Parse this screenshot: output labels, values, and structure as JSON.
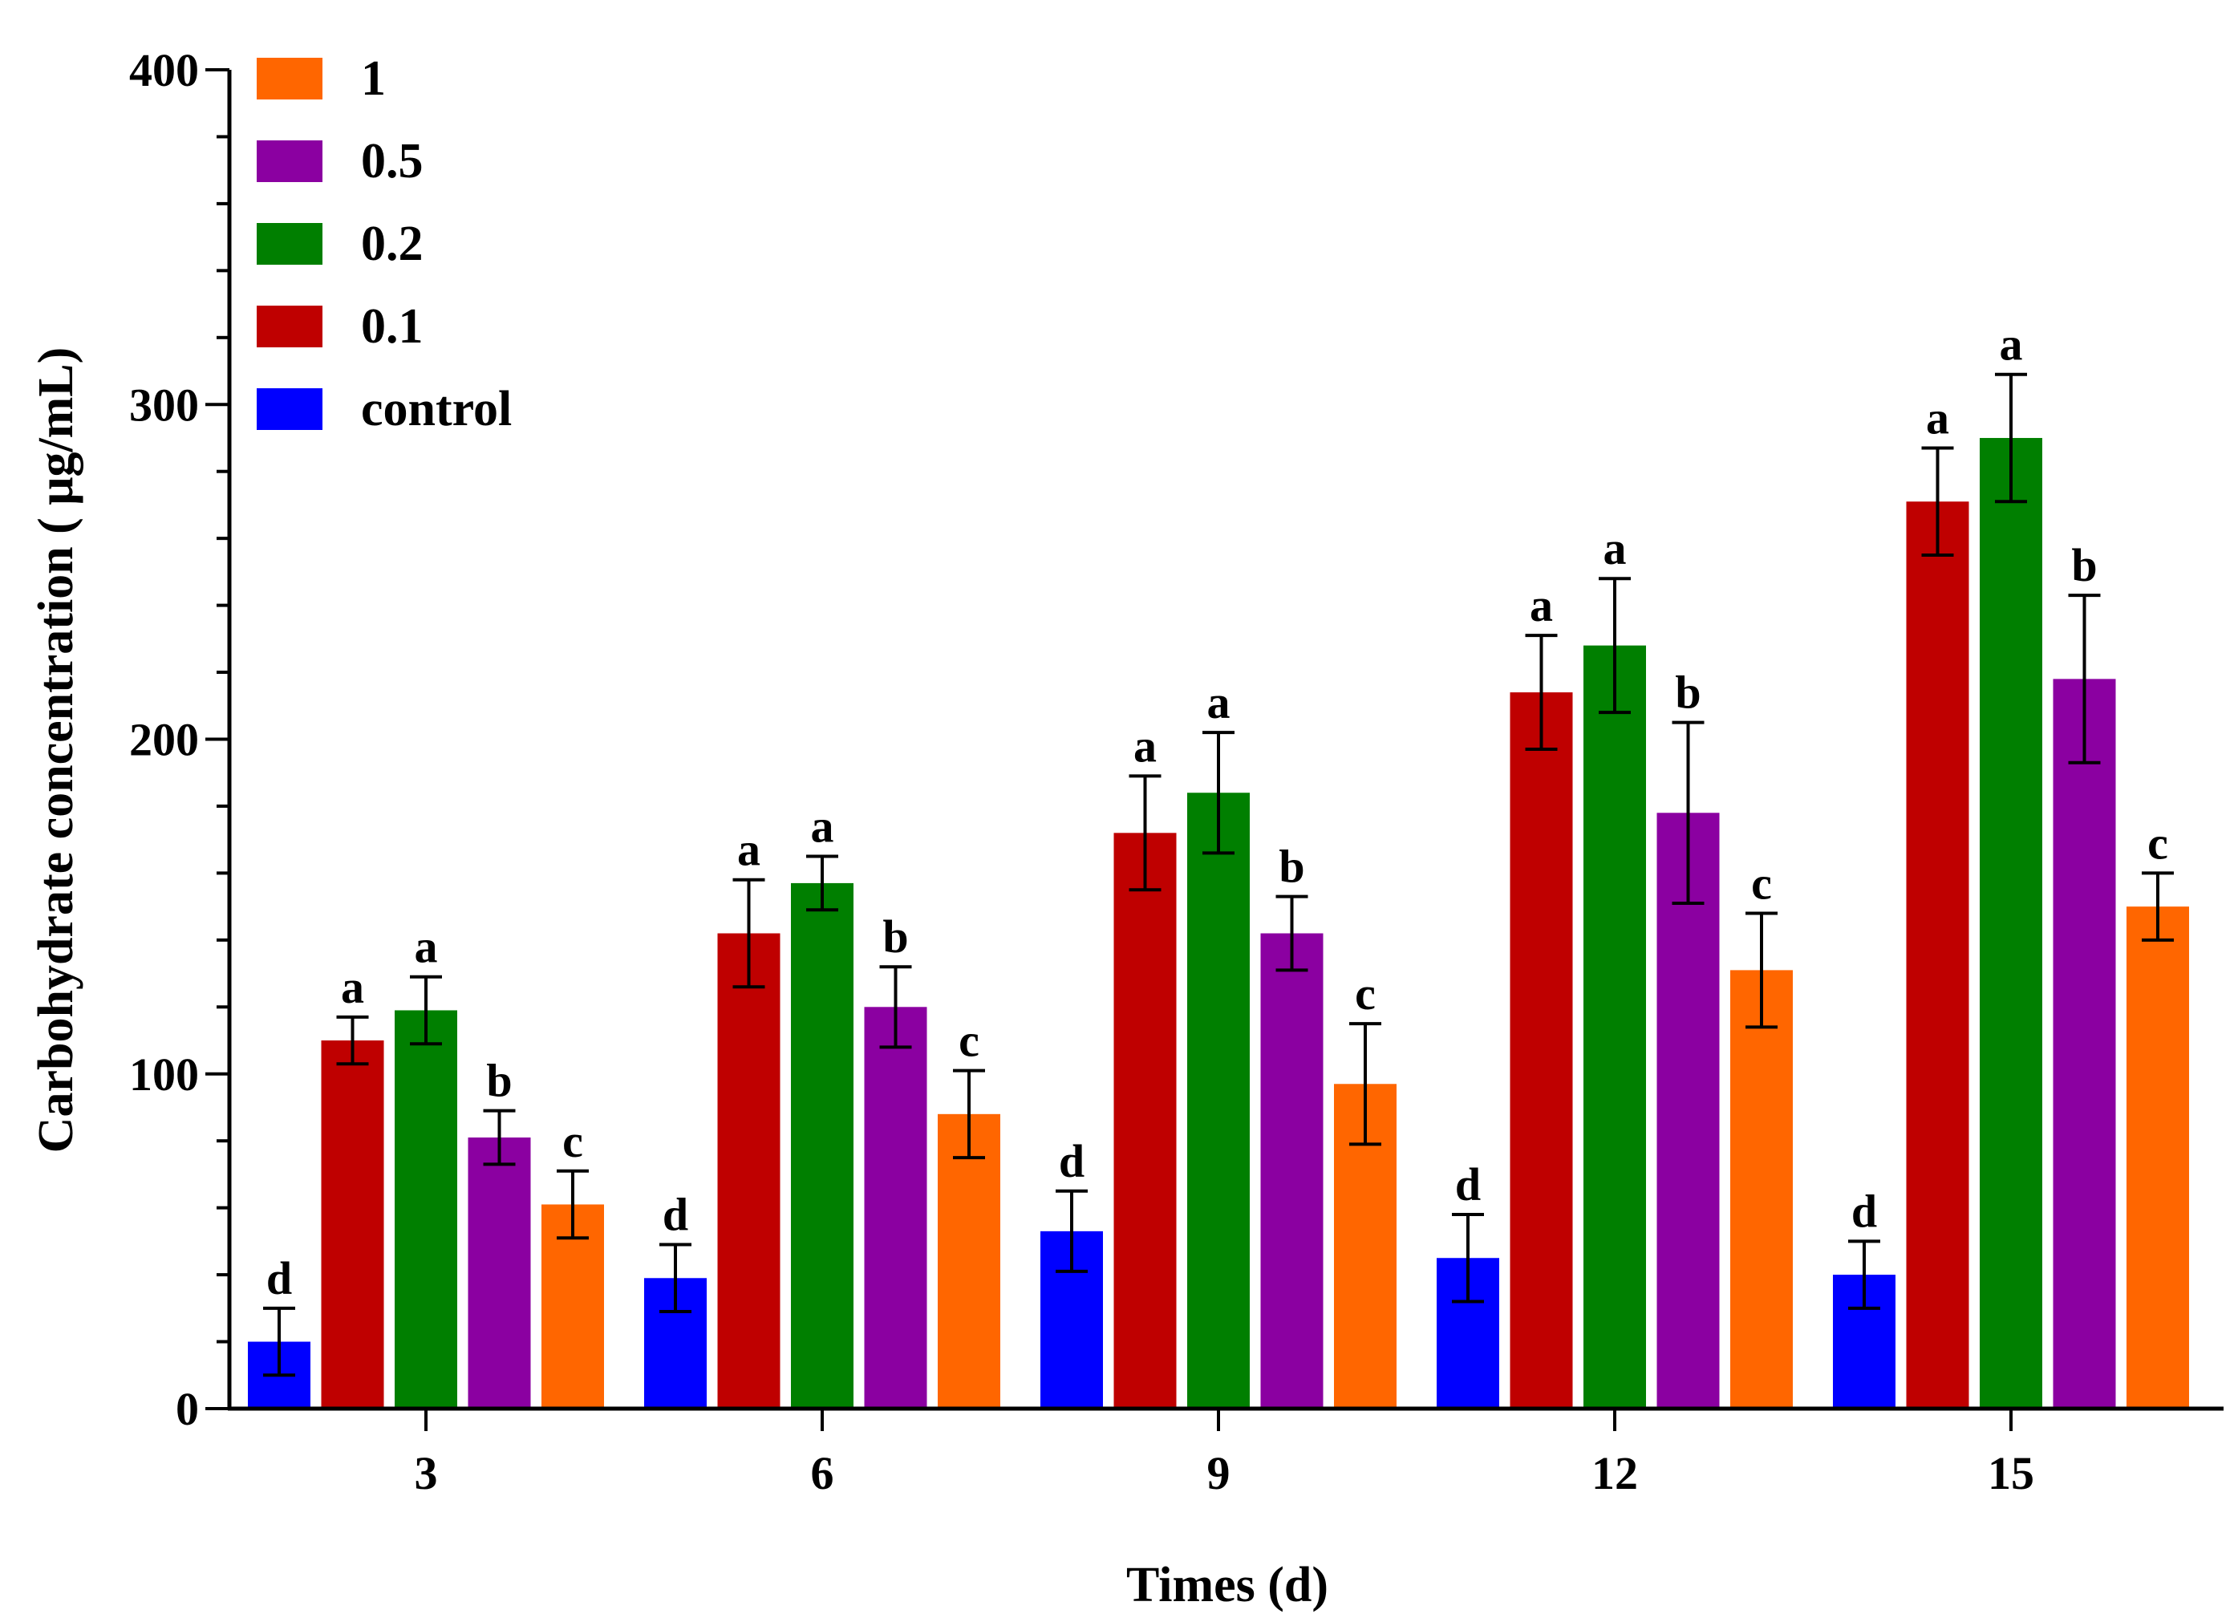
{
  "chart_data": {
    "type": "bar",
    "xlabel": "Times (d)",
    "ylabel": "Carbohydrate concentration ( μg/mL)",
    "ylim": [
      0,
      400
    ],
    "yticks": [
      "0",
      "100",
      "200",
      "300",
      "400"
    ],
    "categories": [
      "3",
      "6",
      "9",
      "12",
      "15"
    ],
    "legend_position": "top-left",
    "grid": false,
    "series": [
      {
        "name": "control",
        "color": "#0000ff",
        "values": [
          20,
          39,
          53,
          45,
          40
        ],
        "errors": [
          10,
          10,
          12,
          13,
          10
        ],
        "letters": [
          "d",
          "d",
          "d",
          "d",
          "d"
        ]
      },
      {
        "name": "0.1",
        "color": "#bf0000",
        "values": [
          110,
          142,
          172,
          214,
          271
        ],
        "errors": [
          7,
          16,
          17,
          17,
          16
        ],
        "letters": [
          "a",
          "a",
          "a",
          "a",
          "a"
        ]
      },
      {
        "name": "0.2",
        "color": "#007f00",
        "values": [
          119,
          157,
          184,
          228,
          290
        ],
        "errors": [
          10,
          8,
          18,
          20,
          19
        ],
        "letters": [
          "a",
          "a",
          "a",
          "a",
          "a"
        ]
      },
      {
        "name": "0.5",
        "color": "#8b00a1",
        "values": [
          81,
          120,
          142,
          178,
          218
        ],
        "errors": [
          8,
          12,
          11,
          27,
          25
        ],
        "letters": [
          "b",
          "b",
          "b",
          "b",
          "b"
        ]
      },
      {
        "name": "1",
        "color": "#ff6600",
        "values": [
          61,
          88,
          97,
          131,
          150
        ],
        "errors": [
          10,
          13,
          18,
          17,
          10
        ],
        "letters": [
          "c",
          "c",
          "c",
          "c",
          "c"
        ]
      }
    ],
    "legend_order": [
      "1",
      "0.5",
      "0.2",
      "0.1",
      "control"
    ]
  }
}
